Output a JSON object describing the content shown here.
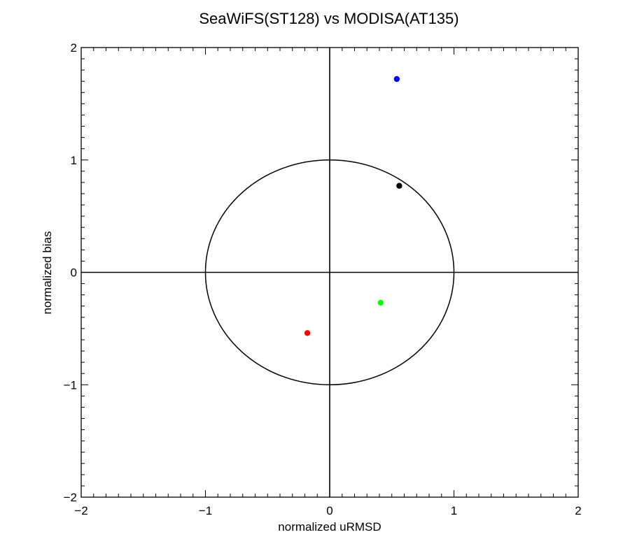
{
  "chart_data": {
    "type": "scatter",
    "title": "SeaWiFS(ST128) vs MODISA(AT135)",
    "xlabel": "normalized uRMSD",
    "ylabel": "normalized bias",
    "xlim": [
      -2,
      2
    ],
    "ylim": [
      -2,
      2
    ],
    "x_ticks": [
      "−2",
      "−1",
      "0",
      "1",
      "2"
    ],
    "y_ticks": [
      "−2",
      "−1",
      "0",
      "1",
      "2"
    ],
    "grid": false,
    "reference_circle_radius": 1,
    "points": [
      {
        "x": 0.54,
        "y": 1.72,
        "color": "#0000ff"
      },
      {
        "x": 0.56,
        "y": 0.77,
        "color": "#000000"
      },
      {
        "x": 0.41,
        "y": -0.27,
        "color": "#00ff00"
      },
      {
        "x": -0.18,
        "y": -0.54,
        "color": "#ff0000"
      }
    ]
  }
}
